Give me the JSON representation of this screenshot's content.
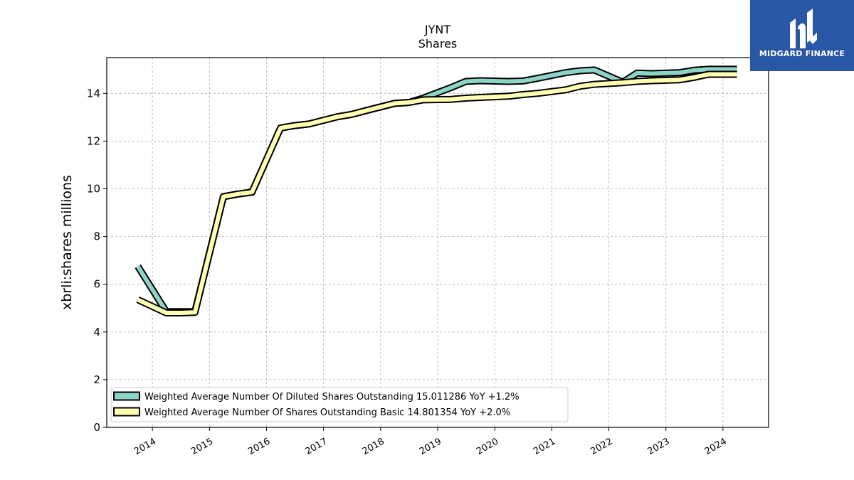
{
  "chart_data": {
    "type": "line",
    "title": "JYNT",
    "subtitle": "Shares",
    "ylabel": "xbrli:shares millions",
    "xlabel": "",
    "ylim": [
      0,
      15.5
    ],
    "xlim": [
      2013.2,
      2024.8
    ],
    "yticks": [
      0,
      2,
      4,
      6,
      8,
      10,
      12,
      14
    ],
    "xticks": [
      "2014",
      "2015",
      "2016",
      "2017",
      "2018",
      "2019",
      "2020",
      "2021",
      "2022",
      "2023",
      "2024"
    ],
    "grid": true,
    "legend_position": "lower-left",
    "series": [
      {
        "name": "Weighted Average Number Of Diluted Shares Outstanding  15.011286 YoY +1.2%",
        "color": "#8dd3c7",
        "x": [
          "2013-09-30",
          "2014-03-31",
          "2014-06-30",
          "2014-09-30",
          "2015-03-31",
          "2015-06-30",
          "2015-09-30",
          "2016-03-31",
          "2016-06-30",
          "2016-09-30",
          "2017-03-31",
          "2017-06-30",
          "2017-09-30",
          "2018-03-31",
          "2018-06-30",
          "2018-09-30",
          "2019-03-31",
          "2019-06-30",
          "2019-09-30",
          "2020-03-31",
          "2020-06-30",
          "2020-09-30",
          "2021-03-31",
          "2021-06-30",
          "2021-09-30",
          "2022-03-31",
          "2022-06-30",
          "2022-09-30",
          "2023-03-31",
          "2023-06-30",
          "2023-09-30",
          "2024-03-31"
        ],
        "values": [
          6.75,
          4.85,
          4.85,
          4.85,
          9.67,
          9.78,
          9.86,
          12.55,
          12.65,
          12.72,
          13.02,
          13.12,
          13.28,
          13.58,
          13.62,
          13.8,
          14.25,
          14.5,
          14.53,
          14.5,
          14.52,
          14.63,
          14.87,
          14.95,
          14.98,
          14.47,
          14.85,
          14.83,
          14.87,
          14.97,
          15.01,
          15.01
        ]
      },
      {
        "name": "Weighted Average Number Of Shares Outstanding Basic  14.801354 YoY +2.0%",
        "color": "#ffffb3",
        "x": [
          "2013-09-30",
          "2014-03-31",
          "2014-06-30",
          "2014-09-30",
          "2015-03-31",
          "2015-06-30",
          "2015-09-30",
          "2016-03-31",
          "2016-06-30",
          "2016-09-30",
          "2017-03-31",
          "2017-06-30",
          "2017-09-30",
          "2018-03-31",
          "2018-06-30",
          "2018-09-30",
          "2019-03-31",
          "2019-06-30",
          "2019-09-30",
          "2020-03-31",
          "2020-06-30",
          "2020-09-30",
          "2021-03-31",
          "2021-06-30",
          "2021-09-30",
          "2022-03-31",
          "2022-06-30",
          "2022-09-30",
          "2023-03-31",
          "2023-06-30",
          "2023-09-30",
          "2024-03-31"
        ],
        "values": [
          5.35,
          4.8,
          4.8,
          4.82,
          9.67,
          9.78,
          9.86,
          12.55,
          12.65,
          12.72,
          13.02,
          13.12,
          13.28,
          13.58,
          13.62,
          13.73,
          13.75,
          13.8,
          13.83,
          13.88,
          13.95,
          14.0,
          14.15,
          14.3,
          14.38,
          14.45,
          14.5,
          14.53,
          14.57,
          14.67,
          14.8,
          14.8
        ]
      }
    ]
  },
  "logo": {
    "text": "MIDGARD FINANCE",
    "color": "#2a56a6"
  }
}
